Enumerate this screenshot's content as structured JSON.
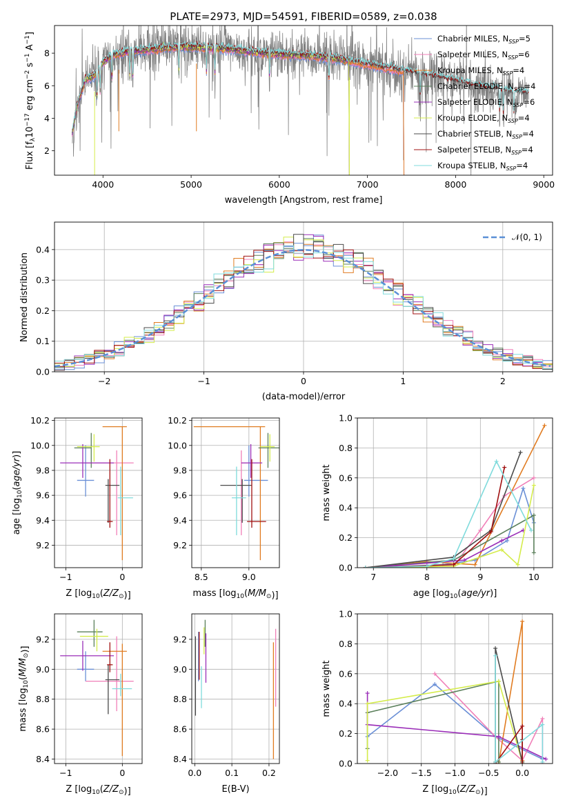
{
  "figure": {
    "title": "PLATE=2973, MJD=54591, FIBERID=0589, z=0.038"
  },
  "colors": {
    "Chabrier MILES": "#6a8fd6",
    "Salpeter MILES": "#f07fb8",
    "Kroupa MILES": "#e07b20",
    "Chabrier ELODIE": "#5a7f5a",
    "Salpeter ELODIE": "#9a2db8",
    "Kroupa ELODIE": "#d4ec4a",
    "Chabrier STELIB": "#4a4a4a",
    "Salpeter STELIB": "#a01010",
    "Kroupa STELIB": "#7fdbdc",
    "observed": "#808080"
  },
  "chart_data": [
    {
      "id": "spectrum",
      "type": "line",
      "title": "PLATE=2973, MJD=54591, FIBERID=0589, z=0.038",
      "xlabel": "wavelength [Angstrom, rest frame]",
      "ylabel_parts": [
        "Flux [f",
        "λ",
        "10",
        "−17",
        " erg cm",
        "−2",
        " s",
        "−1",
        " A",
        "−1",
        "]"
      ],
      "xlim": [
        3450,
        9100
      ],
      "ylim": [
        0.5,
        9.7
      ],
      "xticks": [
        4000,
        5000,
        6000,
        7000,
        8000,
        9000
      ],
      "yticks": [
        2,
        4,
        6,
        8
      ],
      "legend_loc": "upper right",
      "legend": [
        {
          "name": "Chabrier MILES",
          "n": "5"
        },
        {
          "name": "Salpeter MILES",
          "n": "6"
        },
        {
          "name": "Kroupa MILES",
          "n": "4"
        },
        {
          "name": "Chabrier ELODIE",
          "n": "4"
        },
        {
          "name": "Salpeter ELODIE",
          "n": "6"
        },
        {
          "name": "Kroupa ELODIE",
          "n": "4"
        },
        {
          "name": "Chabrier STELIB",
          "n": "4"
        },
        {
          "name": "Salpeter STELIB",
          "n": "4"
        },
        {
          "name": "Kroupa STELIB",
          "n": "4"
        }
      ],
      "model_continuum": {
        "x": [
          3650,
          3700,
          3800,
          3900,
          4000,
          4100,
          4200,
          4300,
          4500,
          4700,
          4900,
          5100,
          5300,
          5500,
          5800,
          6100,
          6400,
          6700,
          7000,
          7300,
          7600,
          7900,
          8200,
          8500,
          8800
        ],
        "y": [
          5.2,
          6.0,
          6.4,
          6.6,
          7.4,
          7.9,
          8.0,
          8.1,
          8.2,
          8.3,
          8.4,
          8.35,
          8.3,
          8.2,
          8.0,
          7.9,
          7.8,
          7.6,
          7.3,
          7.0,
          6.7,
          6.4,
          6.0,
          5.7,
          5.5
        ]
      },
      "mark_explanation": "observed spectrum in grey, model fits overplotted; MILES models stop near 7400 A, ELODIE near 6800 A"
    },
    {
      "id": "residuals",
      "type": "bar",
      "xlabel": "(data-model)/error",
      "ylabel": "Normed distribution",
      "xlim": [
        -2.5,
        2.5
      ],
      "ylim": [
        0,
        0.49
      ],
      "xticks": [
        -2,
        -1,
        0,
        1,
        2
      ],
      "yticks": [
        0.0,
        0.1,
        0.2,
        0.3,
        0.4
      ],
      "grid": true,
      "legend_loc": "upper right",
      "legend_label": "𝒩(0, 1)",
      "bin_width": 0.1
    },
    {
      "id": "age-Z",
      "type": "scatter",
      "xlabel": "Z [log10(Z/Z⊙)]",
      "ylabel": "age [log10(age/yr)]",
      "xlim": [
        -1.2,
        0.35
      ],
      "ylim": [
        9.02,
        10.22
      ],
      "xticks": [
        -1,
        0
      ],
      "yticks": [
        9.2,
        9.4,
        9.6,
        9.8,
        10.0,
        10.2
      ],
      "grid": true,
      "points": [
        {
          "series": "Chabrier MILES",
          "x": -0.65,
          "y": 9.72,
          "xerr": [
            0.15,
            0.15
          ],
          "yerr": [
            0.13,
            0.28
          ]
        },
        {
          "series": "Salpeter MILES",
          "x": -0.1,
          "y": 9.86,
          "xerr": [
            0.55,
            0.3
          ],
          "yerr": [
            0.58,
            0.1
          ]
        },
        {
          "series": "Kroupa MILES",
          "x": 0.0,
          "y": 10.15,
          "xerr": [
            0.35,
            0.08
          ],
          "yerr": [
            1.07,
            0.0
          ]
        },
        {
          "series": "Chabrier ELODIE",
          "x": -0.55,
          "y": 9.98,
          "xerr": [
            0.3,
            0.0
          ],
          "yerr": [
            0.16,
            0.12
          ]
        },
        {
          "series": "Salpeter ELODIE",
          "x": -0.7,
          "y": 9.86,
          "xerr": [
            0.4,
            0.55
          ],
          "yerr": [
            0.12,
            0.15
          ]
        },
        {
          "series": "Kroupa ELODIE",
          "x": -0.5,
          "y": 9.99,
          "xerr": [
            0.3,
            0.1
          ],
          "yerr": [
            0.12,
            0.1
          ]
        },
        {
          "series": "Chabrier STELIB",
          "x": -0.25,
          "y": 9.68,
          "xerr": [
            0.05,
            0.2
          ],
          "yerr": [
            0.3,
            0.05
          ]
        },
        {
          "series": "Salpeter STELIB",
          "x": -0.22,
          "y": 9.39,
          "xerr": [
            0.05,
            0.05
          ],
          "yerr": [
            0.05,
            0.5
          ]
        },
        {
          "series": "Kroupa STELIB",
          "x": -0.03,
          "y": 9.58,
          "xerr": [
            0.05,
            0.22
          ],
          "yerr": [
            0.3,
            0.25
          ]
        }
      ]
    },
    {
      "id": "age-mass",
      "type": "scatter",
      "xlabel": "mass [log10(M/M⊙)]",
      "ylabel": "",
      "xlim": [
        8.4,
        9.32
      ],
      "ylim": [
        9.02,
        10.22
      ],
      "xticks": [
        8.5,
        9.0
      ],
      "yticks": [
        9.2,
        9.4,
        9.6,
        9.8,
        10.0,
        10.2
      ],
      "grid": true,
      "points": [
        {
          "series": "Chabrier MILES",
          "x": 9.0,
          "y": 9.72,
          "xerr": [
            0.05,
            0.2
          ],
          "yerr": [
            0.13,
            0.28
          ]
        },
        {
          "series": "Salpeter MILES",
          "x": 8.92,
          "y": 9.86,
          "xerr": [
            0.0,
            0.18
          ],
          "yerr": [
            0.58,
            0.1
          ]
        },
        {
          "series": "Kroupa MILES",
          "x": 9.12,
          "y": 10.15,
          "xerr": [
            0.7,
            0.05
          ],
          "yerr": [
            1.07,
            0.0
          ]
        },
        {
          "series": "Chabrier ELODIE",
          "x": 9.2,
          "y": 9.98,
          "xerr": [
            0.1,
            0.12
          ],
          "yerr": [
            0.16,
            0.12
          ]
        },
        {
          "series": "Salpeter ELODIE",
          "x": 9.02,
          "y": 9.86,
          "xerr": [
            0.1,
            0.12
          ],
          "yerr": [
            0.12,
            0.15
          ]
        },
        {
          "series": "Kroupa ELODIE",
          "x": 9.22,
          "y": 9.99,
          "xerr": [
            0.1,
            0.05
          ],
          "yerr": [
            0.12,
            0.1
          ]
        },
        {
          "series": "Chabrier STELIB",
          "x": 8.93,
          "y": 9.68,
          "xerr": [
            0.23,
            0.1
          ],
          "yerr": [
            0.3,
            0.05
          ]
        },
        {
          "series": "Salpeter STELIB",
          "x": 9.03,
          "y": 9.39,
          "xerr": [
            0.05,
            0.15
          ],
          "yerr": [
            0.05,
            0.5
          ]
        },
        {
          "series": "Kroupa STELIB",
          "x": 8.87,
          "y": 9.58,
          "xerr": [
            0.05,
            0.1
          ],
          "yerr": [
            0.3,
            0.25
          ]
        }
      ]
    },
    {
      "id": "massweight-age",
      "type": "line",
      "xlabel": "age [log10(age/yr)]",
      "ylabel": "mass weight",
      "xlim": [
        6.7,
        10.35
      ],
      "ylim": [
        0.0,
        1.0
      ],
      "xticks": [
        7,
        8,
        9,
        10
      ],
      "yticks": [
        0.0,
        0.2,
        0.4,
        0.6,
        0.8,
        1.0
      ],
      "grid": true,
      "series": [
        {
          "name": "Chabrier MILES",
          "x": [
            6.85,
            8.3,
            8.9,
            9.5,
            9.8,
            10.0
          ],
          "y": [
            0.0,
            0.02,
            0.05,
            0.18,
            0.53,
            0.3
          ]
        },
        {
          "name": "Salpeter MILES",
          "x": [
            6.85,
            8.5,
            9.0,
            9.45,
            10.0
          ],
          "y": [
            0.0,
            0.01,
            0.25,
            0.48,
            0.6
          ]
        },
        {
          "name": "Kroupa MILES",
          "x": [
            6.85,
            8.0,
            8.9,
            10.2
          ],
          "y": [
            0.0,
            0.04,
            0.02,
            0.95
          ]
        },
        {
          "name": "Chabrier ELODIE",
          "x": [
            6.85,
            8.5,
            10.0,
            10.0
          ],
          "y": [
            0.0,
            0.05,
            0.35,
            0.1
          ]
        },
        {
          "name": "Salpeter ELODIE",
          "x": [
            6.85,
            8.0,
            8.7,
            9.4,
            9.8
          ],
          "y": [
            0.0,
            0.03,
            0.05,
            0.18,
            0.25
          ]
        },
        {
          "name": "Kroupa ELODIE",
          "x": [
            6.85,
            8.5,
            9.4,
            9.7,
            10.0
          ],
          "y": [
            0.0,
            0.01,
            0.12,
            0.02,
            0.55
          ]
        },
        {
          "name": "Chabrier STELIB",
          "x": [
            6.85,
            8.5,
            9.2,
            9.75
          ],
          "y": [
            0.0,
            0.07,
            0.25,
            0.77
          ]
        },
        {
          "name": "Salpeter STELIB",
          "x": [
            6.85,
            8.5,
            9.2,
            9.45
          ],
          "y": [
            0.0,
            0.02,
            0.24,
            0.67
          ]
        },
        {
          "name": "Kroupa STELIB",
          "x": [
            6.85,
            8.0,
            8.5,
            9.3,
            9.95
          ],
          "y": [
            0.0,
            0.01,
            0.06,
            0.71,
            0.25
          ]
        }
      ]
    },
    {
      "id": "mass-Z",
      "type": "scatter",
      "xlabel": "Z [log10(Z/Z⊙)]",
      "ylabel": "mass [log10(M/M⊙)]",
      "xlim": [
        -1.2,
        0.35
      ],
      "ylim": [
        8.37,
        9.37
      ],
      "xticks": [
        -1,
        0
      ],
      "yticks": [
        8.4,
        8.6,
        8.8,
        9.0,
        9.2
      ],
      "grid": true,
      "points": [
        {
          "series": "Chabrier MILES",
          "x": -0.65,
          "y": 9.0,
          "xerr": [
            0.15,
            0.15
          ],
          "yerr": [
            0.08,
            0.12
          ]
        },
        {
          "series": "Salpeter MILES",
          "x": -0.1,
          "y": 8.92,
          "xerr": [
            0.55,
            0.3
          ],
          "yerr": [
            0.2,
            0.3
          ]
        },
        {
          "series": "Kroupa MILES",
          "x": 0.0,
          "y": 9.12,
          "xerr": [
            0.35,
            0.08
          ],
          "yerr": [
            0.7,
            0.05
          ]
        },
        {
          "series": "Chabrier ELODIE",
          "x": -0.5,
          "y": 9.25,
          "xerr": [
            0.3,
            0.15
          ],
          "yerr": [
            0.1,
            0.08
          ]
        },
        {
          "series": "Salpeter ELODIE",
          "x": -0.7,
          "y": 9.09,
          "xerr": [
            0.4,
            0.55
          ],
          "yerr": [
            0.1,
            0.1
          ]
        },
        {
          "series": "Kroupa ELODIE",
          "x": -0.45,
          "y": 9.22,
          "xerr": [
            0.3,
            0.2
          ],
          "yerr": [
            0.1,
            0.05
          ]
        },
        {
          "series": "Chabrier STELIB",
          "x": -0.25,
          "y": 8.93,
          "xerr": [
            0.05,
            0.2
          ],
          "yerr": [
            0.23,
            0.1
          ]
        },
        {
          "series": "Salpeter STELIB",
          "x": -0.22,
          "y": 9.03,
          "xerr": [
            0.05,
            0.05
          ],
          "yerr": [
            0.05,
            0.15
          ]
        },
        {
          "series": "Kroupa STELIB",
          "x": -0.03,
          "y": 8.87,
          "xerr": [
            0.15,
            0.2
          ],
          "yerr": [
            0.05,
            0.1
          ]
        }
      ]
    },
    {
      "id": "mass-ebv",
      "type": "scatter",
      "xlabel": "E(B-V)",
      "ylabel": "",
      "xlim": [
        -0.008,
        0.228
      ],
      "ylim": [
        8.37,
        9.37
      ],
      "xticks": [
        0.0,
        0.1,
        0.2
      ],
      "yticks": [
        8.4,
        8.6,
        8.8,
        9.0,
        9.2
      ],
      "grid": true,
      "points": [
        {
          "series": "Chabrier MILES",
          "x": 0.01,
          "y": 9.05,
          "xerr": [
            0,
            0
          ],
          "yerr": [
            0.13,
            0.2
          ]
        },
        {
          "series": "Salpeter MILES",
          "x": 0.218,
          "y": 9.0,
          "xerr": [
            0,
            0
          ],
          "yerr": [
            0.25,
            0.27
          ]
        },
        {
          "series": "Kroupa MILES",
          "x": 0.212,
          "y": 8.8,
          "xerr": [
            0,
            0
          ],
          "yerr": [
            0.4,
            0.38
          ]
        },
        {
          "series": "Chabrier ELODIE",
          "x": 0.028,
          "y": 9.25,
          "xerr": [
            0,
            0
          ],
          "yerr": [
            0.1,
            0.08
          ]
        },
        {
          "series": "Salpeter ELODIE",
          "x": 0.03,
          "y": 9.09,
          "xerr": [
            0,
            0
          ],
          "yerr": [
            0.18,
            0.15
          ]
        },
        {
          "series": "Kroupa ELODIE",
          "x": 0.025,
          "y": 9.2,
          "xerr": [
            0,
            0
          ],
          "yerr": [
            0.1,
            0.08
          ]
        },
        {
          "series": "Chabrier STELIB",
          "x": 0.002,
          "y": 8.97,
          "xerr": [
            0,
            0
          ],
          "yerr": [
            0.28,
            0.25
          ]
        },
        {
          "series": "Salpeter STELIB",
          "x": 0.012,
          "y": 9.08,
          "xerr": [
            0,
            0
          ],
          "yerr": [
            0.15,
            0.17
          ]
        },
        {
          "series": "Kroupa STELIB",
          "x": 0.018,
          "y": 8.88,
          "xerr": [
            0,
            0
          ],
          "yerr": [
            0.14,
            0.14
          ]
        }
      ]
    },
    {
      "id": "massweight-Z",
      "type": "line",
      "xlabel": "Z [log10(Z/Z⊙)]",
      "ylabel": "mass weight",
      "xlim": [
        -2.45,
        0.45
      ],
      "ylim": [
        0.0,
        1.0
      ],
      "xticks": [
        -2.0,
        -1.5,
        -1.0,
        -0.5,
        0.0
      ],
      "yticks": [
        0.0,
        0.2,
        0.4,
        0.6,
        0.8,
        1.0
      ],
      "grid": true,
      "series": [
        {
          "name": "Chabrier MILES",
          "x": [
            -2.3,
            -1.3,
            -0.4,
            0.3
          ],
          "y": [
            0.18,
            0.53,
            0.18,
            0.03
          ]
        },
        {
          "name": "Salpeter MILES",
          "x": [
            -1.3,
            -0.4,
            0.0,
            0.3,
            0.3
          ],
          "y": [
            0.6,
            0.18,
            0.02,
            0.3,
            0.0
          ]
        },
        {
          "name": "Kroupa MILES",
          "x": [
            -0.35,
            0.0,
            0.0
          ],
          "y": [
            0.0,
            0.95,
            0.02
          ]
        },
        {
          "name": "Chabrier ELODIE",
          "x": [
            -2.3,
            -2.3,
            -0.35,
            -0.35
          ],
          "y": [
            0.1,
            0.34,
            0.55,
            0.01
          ]
        },
        {
          "name": "Salpeter ELODIE",
          "x": [
            -2.3,
            -2.3,
            -0.35,
            0.35
          ],
          "y": [
            0.47,
            0.26,
            0.18,
            0.03
          ]
        },
        {
          "name": "Kroupa ELODIE",
          "x": [
            -2.3,
            -2.3,
            -0.35,
            0.0,
            0.0
          ],
          "y": [
            0.02,
            0.4,
            0.55,
            0.01,
            0.0
          ]
        },
        {
          "name": "Chabrier STELIB",
          "x": [
            -0.4,
            -0.4,
            0.0,
            0.0
          ],
          "y": [
            0.0,
            0.77,
            0.01,
            0.16
          ]
        },
        {
          "name": "Salpeter STELIB",
          "x": [
            -0.4,
            -0.4,
            0.0,
            0.0
          ],
          "y": [
            0.01,
            0.0,
            0.25,
            0.0
          ]
        },
        {
          "name": "Kroupa STELIB",
          "x": [
            -0.4,
            -0.4,
            0.3,
            0.3
          ],
          "y": [
            0.72,
            0.01,
            0.26,
            0.01
          ]
        }
      ]
    }
  ]
}
